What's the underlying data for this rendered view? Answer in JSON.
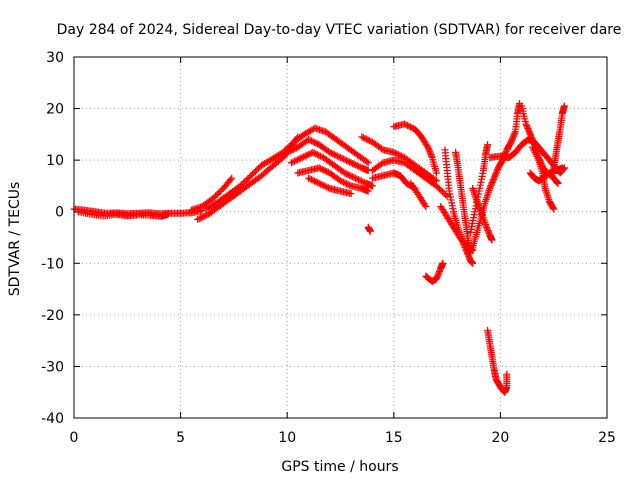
{
  "chart_data": {
    "type": "scatter",
    "title": "Day 284 of 2024, Sidereal Day-to-day VTEC variation (SDTVAR) for receiver dare",
    "xlabel": "GPS time / hours",
    "ylabel": "SDTVAR / TECUs",
    "xlim": [
      0,
      25
    ],
    "ylim": [
      -40,
      30
    ],
    "xticks": [
      0,
      5,
      10,
      15,
      20,
      25
    ],
    "yticks": [
      -40,
      -30,
      -20,
      -10,
      0,
      10,
      20,
      30
    ],
    "grid": true,
    "marker": "+",
    "color": "#ff0000",
    "series": [
      {
        "name": "trace-1",
        "points": [
          [
            0.0,
            0.5
          ],
          [
            0.5,
            0.3
          ],
          [
            1.0,
            0.0
          ],
          [
            1.5,
            -0.3
          ],
          [
            2.0,
            -0.2
          ],
          [
            2.5,
            -0.4
          ],
          [
            3.0,
            -0.3
          ],
          [
            3.5,
            -0.2
          ],
          [
            4.0,
            -0.4
          ],
          [
            4.5,
            -0.3
          ],
          [
            5.0,
            -0.3
          ],
          [
            5.5,
            -0.2
          ],
          [
            6.0,
            0.2
          ]
        ]
      },
      {
        "name": "trace-2",
        "points": [
          [
            0.2,
            0.0
          ],
          [
            0.8,
            -0.5
          ],
          [
            1.4,
            -0.8
          ],
          [
            2.0,
            -0.5
          ],
          [
            2.5,
            -0.8
          ],
          [
            3.0,
            -0.6
          ],
          [
            3.6,
            -0.7
          ],
          [
            4.1,
            -0.9
          ],
          [
            4.4,
            -0.5
          ]
        ]
      },
      {
        "name": "trace-3",
        "points": [
          [
            5.5,
            0.3
          ],
          [
            6.0,
            1.0
          ],
          [
            6.5,
            2.5
          ],
          [
            7.0,
            4.5
          ],
          [
            7.4,
            6.5
          ]
        ]
      },
      {
        "name": "trace-4",
        "points": [
          [
            5.8,
            -1.5
          ],
          [
            6.3,
            -0.5
          ],
          [
            6.8,
            1.0
          ],
          [
            7.3,
            2.5
          ],
          [
            7.8,
            4.0
          ],
          [
            8.3,
            5.5
          ],
          [
            8.8,
            7.0
          ],
          [
            9.3,
            8.8
          ],
          [
            9.8,
            10.5
          ],
          [
            10.2,
            12.5
          ],
          [
            10.5,
            14.5
          ]
        ]
      },
      {
        "name": "trace-5",
        "points": [
          [
            6.2,
            0.5
          ],
          [
            6.8,
            2.0
          ],
          [
            7.3,
            3.5
          ],
          [
            7.8,
            5.0
          ],
          [
            8.3,
            7.0
          ],
          [
            8.8,
            9.0
          ],
          [
            9.3,
            10.2
          ],
          [
            9.8,
            11.5
          ],
          [
            10.3,
            13.5
          ],
          [
            10.8,
            15.0
          ],
          [
            11.3,
            16.2
          ],
          [
            11.8,
            15.5
          ],
          [
            12.3,
            14.0
          ],
          [
            12.8,
            12.5
          ],
          [
            13.3,
            11.0
          ],
          [
            13.8,
            9.5
          ]
        ]
      },
      {
        "name": "trace-6",
        "points": [
          [
            10.0,
            11.5
          ],
          [
            10.5,
            12.5
          ],
          [
            11.0,
            14.0
          ],
          [
            11.5,
            13.0
          ],
          [
            12.0,
            11.5
          ],
          [
            12.5,
            10.5
          ],
          [
            13.0,
            9.5
          ],
          [
            13.5,
            8.5
          ],
          [
            13.8,
            8.0
          ]
        ]
      },
      {
        "name": "trace-7",
        "points": [
          [
            10.2,
            9.5
          ],
          [
            10.7,
            10.5
          ],
          [
            11.2,
            11.5
          ],
          [
            11.7,
            10.5
          ],
          [
            12.2,
            9.0
          ],
          [
            12.7,
            7.5
          ],
          [
            13.2,
            6.5
          ],
          [
            13.7,
            5.5
          ],
          [
            14.0,
            5.0
          ]
        ]
      },
      {
        "name": "trace-8",
        "points": [
          [
            10.5,
            7.5
          ],
          [
            11.0,
            8.0
          ],
          [
            11.5,
            8.5
          ],
          [
            12.0,
            7.5
          ],
          [
            12.5,
            6.0
          ],
          [
            13.0,
            5.0
          ],
          [
            13.5,
            4.5
          ],
          [
            13.8,
            4.0
          ]
        ]
      },
      {
        "name": "trace-9",
        "points": [
          [
            11.0,
            6.5
          ],
          [
            11.5,
            5.5
          ],
          [
            12.0,
            4.5
          ],
          [
            12.5,
            4.0
          ],
          [
            13.0,
            3.5
          ]
        ]
      },
      {
        "name": "trace-10",
        "points": [
          [
            13.5,
            14.5
          ],
          [
            14.0,
            13.5
          ],
          [
            14.5,
            12.0
          ],
          [
            15.0,
            11.5
          ],
          [
            15.5,
            10.5
          ],
          [
            16.0,
            9.0
          ],
          [
            16.5,
            7.5
          ],
          [
            17.0,
            6.0
          ]
        ]
      },
      {
        "name": "trace-11",
        "points": [
          [
            14.0,
            8.0
          ],
          [
            14.5,
            9.5
          ],
          [
            15.0,
            10.0
          ],
          [
            15.5,
            9.5
          ],
          [
            16.0,
            8.0
          ],
          [
            16.5,
            6.5
          ],
          [
            17.0,
            5.0
          ],
          [
            17.5,
            3.0
          ]
        ]
      },
      {
        "name": "trace-12",
        "points": [
          [
            14.0,
            6.5
          ],
          [
            14.5,
            7.0
          ],
          [
            15.0,
            7.5
          ],
          [
            15.3,
            7.0
          ],
          [
            15.6,
            5.5
          ],
          [
            16.0,
            4.5
          ]
        ]
      },
      {
        "name": "trace-13",
        "points": [
          [
            15.0,
            16.5
          ],
          [
            15.5,
            17.0
          ],
          [
            16.0,
            16.0
          ],
          [
            16.3,
            14.5
          ],
          [
            16.6,
            12.5
          ],
          [
            16.8,
            10.5
          ],
          [
            17.0,
            7.5
          ]
        ]
      },
      {
        "name": "trace-14",
        "points": [
          [
            15.8,
            5.5
          ],
          [
            16.2,
            3.0
          ],
          [
            16.5,
            1.0
          ]
        ]
      },
      {
        "name": "trace-15",
        "points": [
          [
            13.8,
            -3.0
          ],
          [
            13.9,
            -3.8
          ]
        ]
      },
      {
        "name": "trace-16",
        "points": [
          [
            16.5,
            -12.5
          ],
          [
            16.8,
            -13.5
          ],
          [
            17.0,
            -13.0
          ],
          [
            17.2,
            -11.0
          ],
          [
            17.3,
            -10.0
          ]
        ]
      },
      {
        "name": "trace-17",
        "points": [
          [
            17.4,
            12.0
          ],
          [
            17.5,
            8.0
          ],
          [
            17.6,
            4.0
          ],
          [
            17.8,
            0.0
          ],
          [
            18.0,
            -3.0
          ],
          [
            18.2,
            -5.5
          ],
          [
            18.4,
            -7.5
          ],
          [
            18.6,
            -9.5
          ],
          [
            18.7,
            -10.0
          ]
        ]
      },
      {
        "name": "trace-18",
        "points": [
          [
            17.9,
            11.5
          ],
          [
            18.0,
            9.0
          ],
          [
            18.1,
            6.0
          ],
          [
            18.2,
            3.0
          ],
          [
            18.3,
            0.0
          ],
          [
            18.4,
            -3.0
          ],
          [
            18.5,
            -6.0
          ],
          [
            18.6,
            -8.0
          ]
        ]
      },
      {
        "name": "trace-19",
        "points": [
          [
            17.2,
            1.0
          ],
          [
            17.5,
            -1.0
          ],
          [
            17.8,
            -3.0
          ],
          [
            18.1,
            -5.0
          ],
          [
            18.4,
            -6.5
          ],
          [
            18.7,
            -7.5
          ]
        ]
      },
      {
        "name": "trace-20",
        "points": [
          [
            18.7,
            -7.0
          ],
          [
            18.9,
            -4.0
          ],
          [
            19.1,
            -1.0
          ],
          [
            19.3,
            2.0
          ],
          [
            19.5,
            4.5
          ],
          [
            19.7,
            6.5
          ],
          [
            19.9,
            8.5
          ],
          [
            20.1,
            10.0
          ],
          [
            20.3,
            12.0
          ],
          [
            20.5,
            13.5
          ],
          [
            20.7,
            15.5
          ],
          [
            20.8,
            19.0
          ],
          [
            20.9,
            21.0
          ]
        ]
      },
      {
        "name": "trace-21",
        "points": [
          [
            18.6,
            -4.0
          ],
          [
            18.8,
            0.0
          ],
          [
            19.0,
            4.0
          ],
          [
            19.2,
            8.0
          ],
          [
            19.3,
            11.0
          ],
          [
            19.4,
            13.0
          ]
        ]
      },
      {
        "name": "trace-22",
        "points": [
          [
            18.7,
            4.5
          ],
          [
            18.9,
            2.0
          ],
          [
            19.1,
            0.0
          ],
          [
            19.3,
            -2.5
          ],
          [
            19.5,
            -4.5
          ],
          [
            19.6,
            -5.5
          ]
        ]
      },
      {
        "name": "trace-23",
        "points": [
          [
            19.4,
            -23.0
          ],
          [
            19.5,
            -25.5
          ],
          [
            19.6,
            -28.0
          ],
          [
            19.7,
            -30.5
          ],
          [
            19.8,
            -32.5
          ],
          [
            20.0,
            -34.0
          ],
          [
            20.2,
            -35.0
          ],
          [
            20.3,
            -34.0
          ],
          [
            20.3,
            -31.5
          ]
        ]
      },
      {
        "name": "trace-24",
        "points": [
          [
            19.5,
            10.5
          ],
          [
            20.0,
            10.8
          ],
          [
            20.4,
            10.5
          ],
          [
            20.7,
            11.5
          ],
          [
            21.0,
            13.0
          ],
          [
            21.3,
            14.0
          ],
          [
            21.6,
            13.5
          ],
          [
            21.9,
            12.0
          ],
          [
            22.2,
            10.5
          ],
          [
            22.5,
            9.0
          ],
          [
            22.8,
            7.5
          ],
          [
            23.0,
            8.5
          ]
        ]
      },
      {
        "name": "trace-25",
        "points": [
          [
            21.0,
            20.5
          ],
          [
            21.2,
            17.0
          ],
          [
            21.4,
            15.0
          ],
          [
            21.6,
            13.0
          ],
          [
            21.8,
            10.5
          ],
          [
            22.0,
            8.5
          ],
          [
            22.2,
            7.5
          ],
          [
            22.4,
            7.0
          ],
          [
            22.6,
            6.0
          ],
          [
            22.7,
            5.5
          ]
        ]
      },
      {
        "name": "trace-26",
        "points": [
          [
            21.5,
            12.5
          ],
          [
            21.8,
            10.0
          ],
          [
            22.0,
            7.0
          ],
          [
            22.1,
            4.5
          ],
          [
            22.3,
            2.0
          ],
          [
            22.5,
            0.5
          ]
        ]
      },
      {
        "name": "trace-27",
        "points": [
          [
            22.5,
            8.5
          ],
          [
            22.6,
            11.0
          ],
          [
            22.7,
            13.5
          ],
          [
            22.8,
            16.0
          ],
          [
            22.9,
            19.0
          ],
          [
            23.0,
            20.5
          ]
        ]
      },
      {
        "name": "trace-28",
        "points": [
          [
            21.4,
            7.5
          ],
          [
            21.6,
            6.5
          ],
          [
            21.8,
            6.0
          ],
          [
            22.0,
            6.5
          ],
          [
            22.3,
            7.5
          ],
          [
            22.6,
            8.0
          ],
          [
            22.9,
            8.5
          ]
        ]
      }
    ]
  }
}
